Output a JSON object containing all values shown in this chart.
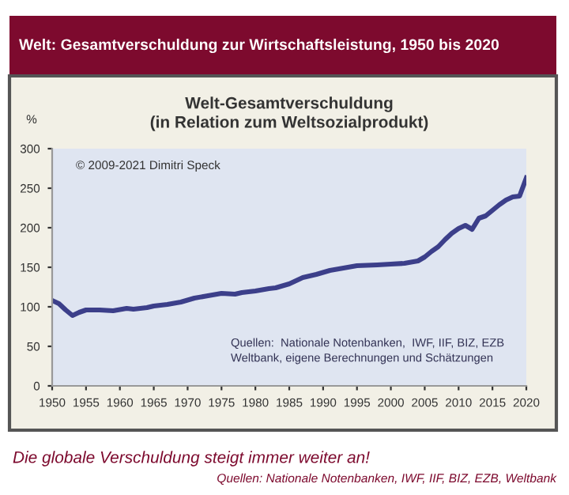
{
  "chart_data": {
    "type": "line",
    "title": "Welt: Gesamtverschuldung zur Wirtschaftsleistung, 1950 bis 2020",
    "subtitle": "Welt-Gesamtverschuldung\n(in Relation zum Weltsozialprodukt)",
    "ylabel": "%",
    "x": [
      1950,
      1951,
      1952,
      1953,
      1954,
      1955,
      1957,
      1959,
      1961,
      1962,
      1964,
      1965,
      1967,
      1969,
      1971,
      1973,
      1975,
      1977,
      1978,
      1980,
      1982,
      1983,
      1985,
      1987,
      1989,
      1991,
      1993,
      1995,
      1998,
      2000,
      2002,
      2004,
      2005,
      2006,
      2007,
      2008,
      2009,
      2010,
      2011,
      2012,
      2013,
      2014,
      2015,
      2016,
      2017,
      2018,
      2019,
      2020
    ],
    "series": [
      {
        "color": "#3c3f8a",
        "values": [
          108,
          104,
          96,
          89,
          93,
          96,
          96,
          95,
          98,
          97,
          99,
          101,
          103,
          106,
          111,
          114,
          117,
          116,
          118,
          120,
          123,
          124,
          129,
          137,
          141,
          146,
          149,
          152,
          153,
          154,
          155,
          158,
          163,
          170,
          176,
          185,
          193,
          199,
          203,
          198,
          212,
          215,
          222,
          229,
          235,
          239,
          240,
          263
        ]
      }
    ],
    "xlim": [
      1950,
      2020
    ],
    "xticks": [
      1950,
      1955,
      1960,
      1965,
      1970,
      1975,
      1980,
      1985,
      1990,
      1995,
      2000,
      2005,
      2010,
      2015,
      2020
    ],
    "ylim": [
      0,
      300
    ],
    "yticks": [
      0,
      50,
      100,
      150,
      200,
      250,
      300
    ],
    "marker": "none",
    "line_style": "solid",
    "annotations": [
      "© 2009-2021 Dimitri Speck",
      "Quellen:  Nationale Notenbanken,  IWF, IIF, BIZ, EZB\nWeltbank, eigene Berechnungen und Schätzungen",
      "Die globale Verschuldung steigt immer weiter an!",
      "Quellen: Nationale Notenbanken, IWF, IIF, BIZ, EZB, Weltbank"
    ]
  }
}
